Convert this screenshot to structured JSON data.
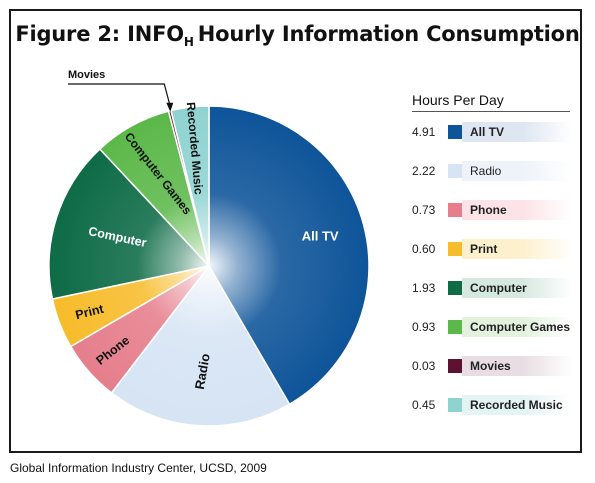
{
  "title": {
    "prefix": "Figure 2:  INFO",
    "subscript": "H",
    "suffix": "Hourly Information Consumption"
  },
  "legend": {
    "heading": "Hours Per Day"
  },
  "source": "Global Information Industry Center, UCSD, 2009",
  "chart_data": {
    "type": "pie",
    "title": "Figure 2:  INFOH Hourly Information Consumption",
    "legend_title": "Hours Per Day",
    "legend_placement": "right",
    "unit": "hours per day",
    "slices": [
      {
        "label": "All TV",
        "value": 4.91,
        "display": "4.91",
        "color": "#0e5499",
        "light": "#dde6f1",
        "slice_label": "All TV"
      },
      {
        "label": "Radio",
        "value": 2.22,
        "display": "2.22",
        "color": "#d6e4f4",
        "light": "#eef3fa",
        "slice_label": "Radio"
      },
      {
        "label": "Phone",
        "value": 0.73,
        "display": "0.73",
        "color": "#e67e8c",
        "light": "#fbe3e7",
        "slice_label": "Phone"
      },
      {
        "label": "Print",
        "value": 0.6,
        "display": "0.60",
        "color": "#f7bc2b",
        "light": "#fdf0cd",
        "slice_label": "Print"
      },
      {
        "label": "Computer",
        "value": 1.93,
        "display": "1.93",
        "color": "#0d6b46",
        "light": "#d6e9e0",
        "slice_label": "Computer"
      },
      {
        "label": "Computer Games",
        "value": 0.93,
        "display": "0.93",
        "color": "#5cb84a",
        "light": "#e2f2dd",
        "slice_label": "Computer Games"
      },
      {
        "label": "Movies",
        "value": 0.03,
        "display": "0.03",
        "color": "#5c1230",
        "light": "#e8dde2",
        "slice_label": "Movies"
      },
      {
        "label": "Recorded Music",
        "value": 0.45,
        "display": "0.45",
        "color": "#8fd3d1",
        "light": "#e3f4f3",
        "slice_label": "Recorded Music"
      }
    ]
  }
}
